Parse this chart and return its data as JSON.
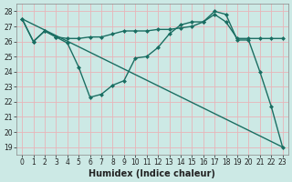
{
  "series": [
    {
      "x": [
        0,
        1,
        2,
        3,
        4,
        5,
        6,
        7,
        8,
        9,
        10,
        11,
        12,
        13,
        14,
        15,
        16,
        17,
        18,
        19,
        20,
        21,
        22,
        23
      ],
      "y": [
        27.5,
        26.0,
        26.7,
        26.3,
        26.2,
        26.2,
        26.3,
        26.3,
        26.5,
        26.7,
        26.7,
        26.7,
        26.8,
        26.8,
        26.9,
        27.0,
        27.3,
        27.8,
        27.3,
        26.2,
        26.2,
        26.2,
        26.2,
        26.2
      ]
    },
    {
      "x": [
        0,
        1,
        2,
        3,
        4,
        5,
        6,
        7,
        8,
        9,
        10,
        11,
        12,
        13,
        14,
        15,
        16,
        17,
        18,
        19,
        20,
        21,
        22,
        23
      ],
      "y": [
        27.5,
        26.0,
        26.7,
        26.3,
        25.9,
        24.3,
        22.3,
        22.5,
        23.1,
        23.4,
        24.9,
        25.0,
        25.6,
        26.5,
        27.1,
        27.3,
        27.3,
        28.0,
        27.8,
        26.1,
        26.1,
        24.0,
        21.7,
        19.0
      ]
    },
    {
      "x": [
        0,
        23
      ],
      "y": [
        27.5,
        19.0
      ]
    }
  ],
  "xlabel": "Humidex (Indice chaleur)",
  "xlim": [
    -0.5,
    23.5
  ],
  "ylim": [
    18.5,
    28.5
  ],
  "yticks": [
    19,
    20,
    21,
    22,
    23,
    24,
    25,
    26,
    27,
    28
  ],
  "xticks": [
    0,
    1,
    2,
    3,
    4,
    5,
    6,
    7,
    8,
    9,
    10,
    11,
    12,
    13,
    14,
    15,
    16,
    17,
    18,
    19,
    20,
    21,
    22,
    23
  ],
  "bg_color": "#cce9e5",
  "grid_color": "#e8b4b8",
  "line_color": "#1a6e62",
  "text_color": "#222222",
  "tick_fontsize": 5.5,
  "label_fontsize": 7
}
